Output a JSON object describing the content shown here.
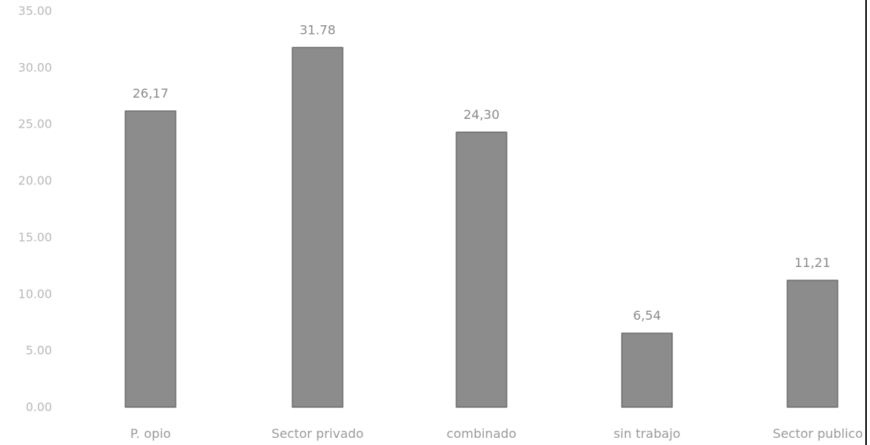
{
  "chart_data": {
    "type": "bar",
    "categories": [
      "P. opio",
      "Sector privado",
      "combinado",
      "sin trabajo",
      "Sector publico"
    ],
    "values": [
      26.17,
      31.78,
      24.3,
      6.54,
      11.21
    ],
    "data_labels": [
      "26,17",
      "31.78",
      "24,30",
      "6,54",
      "11,21"
    ],
    "y_ticks": [
      "0.00",
      "5.00",
      "10.00",
      "15.00",
      "20.00",
      "25.00",
      "30.00",
      "35.00"
    ],
    "ylim": [
      0,
      35
    ],
    "title": "",
    "xlabel": "",
    "ylabel": "",
    "grid": false,
    "bar_color": "#8c8c8c"
  }
}
